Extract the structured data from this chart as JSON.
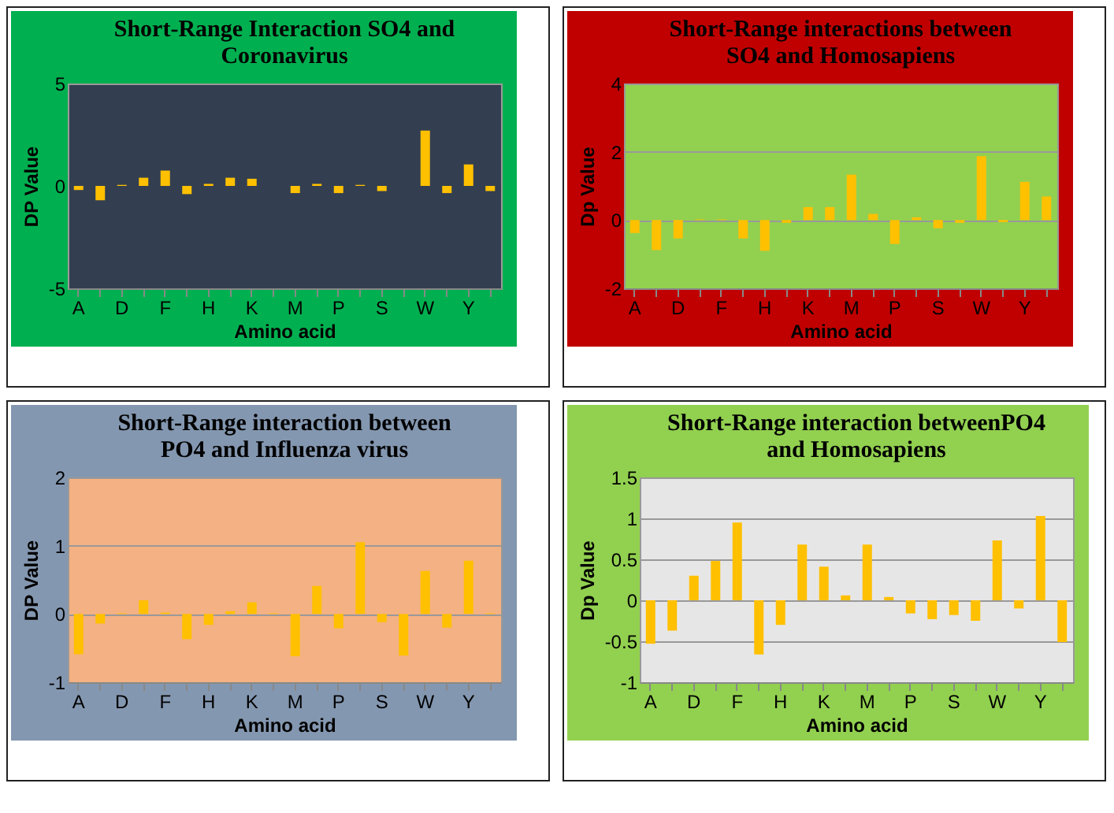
{
  "chart_data": [
    {
      "type": "bar",
      "title": "Short-Range Interaction SO4 and Coronavirus",
      "xlabel": "Amino acid",
      "ylabel": "DP Value",
      "categories": [
        "A",
        null,
        "D",
        null,
        "F",
        null,
        "H",
        null,
        "K",
        null,
        "M",
        null,
        "P",
        null,
        "S",
        null,
        "W",
        null,
        "Y",
        null
      ],
      "values": [
        -0.2,
        -0.7,
        0.05,
        0.4,
        0.75,
        -0.4,
        0.1,
        0.4,
        0.35,
        0,
        -0.35,
        0.1,
        -0.35,
        0.05,
        -0.25,
        0,
        2.7,
        -0.35,
        1.05,
        -0.25
      ],
      "color": "#ffc000",
      "ylim": [
        -5,
        5
      ],
      "yticks": [
        -5,
        0,
        5
      ],
      "grid": false
    },
    {
      "type": "bar",
      "title": "Short-Range interactions between SO4 and Homosapiens",
      "xlabel": "Amino acid",
      "ylabel": "Dp Value",
      "categories": [
        "A",
        null,
        "D",
        null,
        "F",
        null,
        "H",
        null,
        "K",
        null,
        "M",
        null,
        "P",
        null,
        "S",
        null,
        "W",
        null,
        "Y",
        null
      ],
      "values": [
        -0.38,
        -0.88,
        -0.54,
        0.02,
        0.02,
        -0.54,
        -0.9,
        -0.08,
        0.38,
        0.38,
        1.33,
        0.18,
        -0.7,
        0.08,
        -0.24,
        -0.08,
        1.87,
        -0.06,
        1.12,
        0.69
      ],
      "color": "#ffc000",
      "ylim": [
        -2,
        4
      ],
      "yticks": [
        -2,
        0,
        2,
        4
      ],
      "grid": "y"
    },
    {
      "type": "bar",
      "title": "Short-Range interaction between PO4 and Influenza virus",
      "xlabel": "Amino acid",
      "ylabel": "DP Value",
      "categories": [
        "A",
        null,
        "D",
        null,
        "F",
        null,
        "H",
        null,
        "K",
        null,
        "M",
        null,
        "P",
        null,
        "S",
        null,
        "W",
        null,
        "Y",
        null
      ],
      "values": [
        -0.59,
        -0.14,
        0.01,
        0.2,
        0.02,
        -0.37,
        -0.16,
        0.04,
        0.17,
        0.01,
        -0.62,
        0.41,
        -0.21,
        1.05,
        -0.12,
        -0.61,
        0.63,
        -0.2,
        0.78,
        0.01
      ],
      "color": "#ffc000",
      "ylim": [
        -1,
        2
      ],
      "yticks": [
        -1,
        0,
        1,
        2
      ],
      "grid": "y"
    },
    {
      "type": "bar",
      "title": "Short-Range interaction betweenPO4 and Homosapiens",
      "xlabel": "Amino acid",
      "ylabel": "Dp Value",
      "categories": [
        "A",
        null,
        "D",
        null,
        "F",
        null,
        "H",
        null,
        "K",
        null,
        "M",
        null,
        "P",
        null,
        "S",
        null,
        "W",
        null,
        "Y",
        null
      ],
      "values": [
        -0.53,
        -0.37,
        0.3,
        0.48,
        0.95,
        -0.66,
        -0.3,
        0.68,
        0.41,
        0.06,
        0.68,
        0.04,
        -0.16,
        -0.23,
        -0.18,
        -0.25,
        0.73,
        -0.1,
        1.03,
        -0.51
      ],
      "color": "#ffc000",
      "ylim": [
        -1,
        1.5
      ],
      "yticks": [
        -1,
        -0.5,
        0,
        0.5,
        1,
        1.5
      ],
      "grid": "y"
    }
  ]
}
